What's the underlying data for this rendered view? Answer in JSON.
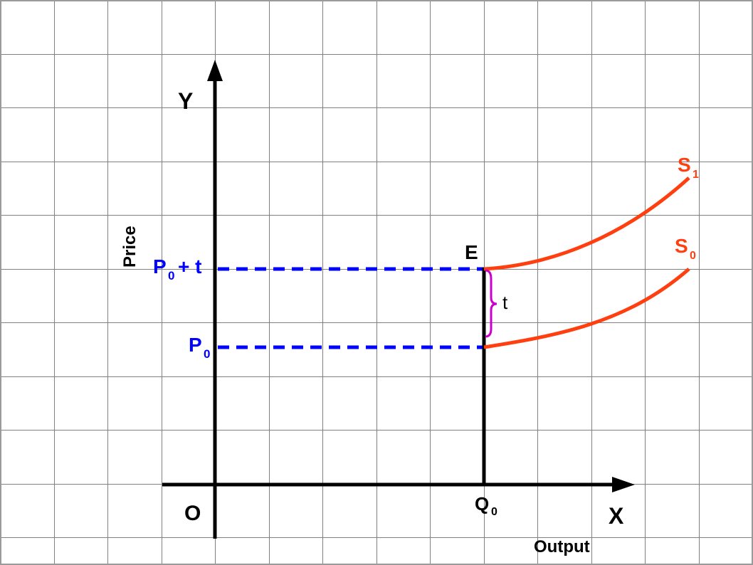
{
  "axes": {
    "y_label": "Y",
    "x_label": "X",
    "origin_label": "O",
    "y_title": "Price",
    "x_title": "Output"
  },
  "labels": {
    "p0_main": "P",
    "p0_sub": "0",
    "p0t_main": "P",
    "p0t_sub": "0",
    "p0t_suffix": "+ t",
    "q0_main": "Q",
    "q0_sub": "0",
    "e": "E",
    "tax": "t",
    "s1_main": "S",
    "s1_sub": "1",
    "s0_main": "S",
    "s0_sub": "0"
  },
  "colors": {
    "supply": "#ff3f0f",
    "price_lines": "#0000ff",
    "tax_brace": "#cc00cc",
    "axes": "#000000",
    "grid": "#808080"
  }
}
